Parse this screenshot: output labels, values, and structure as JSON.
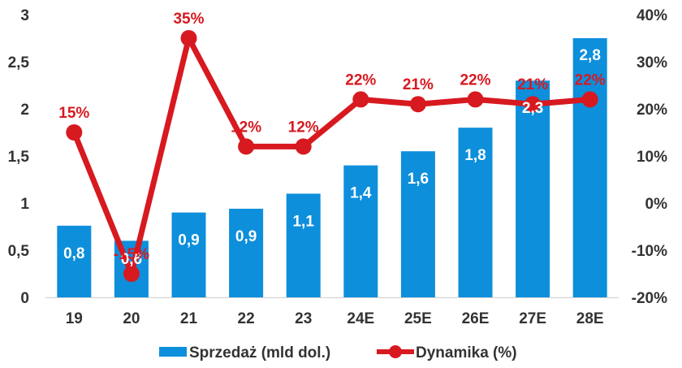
{
  "chart_data": {
    "type": "bar",
    "categories": [
      "19",
      "20",
      "21",
      "22",
      "23",
      "24E",
      "25E",
      "26E",
      "27E",
      "28E"
    ],
    "series": [
      {
        "name": "Sprzedaż (mld dol.)",
        "type": "bar",
        "axis": "left",
        "values": [
          0.76,
          0.6,
          0.9,
          0.94,
          1.1,
          1.4,
          1.55,
          1.8,
          2.3,
          2.75
        ],
        "labels": [
          "0,8",
          "0,6",
          "0,9",
          "0,9",
          "1,1",
          "1,4",
          "1,6",
          "1,8",
          "2,3",
          "2,8"
        ],
        "color": "#0d8fdc"
      },
      {
        "name": "Dynamika (%)",
        "type": "line",
        "axis": "right",
        "values": [
          15,
          -15,
          35,
          12,
          12,
          22,
          21,
          22,
          21,
          22
        ],
        "labels": [
          "15%",
          "-15%",
          "35%",
          "12%",
          "12%",
          "22%",
          "21%",
          "22%",
          "21%",
          "22%"
        ],
        "color": "#d71920"
      }
    ],
    "y_left": {
      "range": [
        0,
        3
      ],
      "ticks": [
        0,
        0.5,
        1,
        1.5,
        2,
        2.5,
        3
      ],
      "tick_labels": [
        "0",
        "0,5",
        "1",
        "1,5",
        "2",
        "2,5",
        "3"
      ]
    },
    "y_right": {
      "range": [
        -20,
        40
      ],
      "ticks": [
        -20,
        -10,
        0,
        10,
        20,
        30,
        40
      ],
      "tick_labels": [
        "-20%",
        "-10%",
        "0%",
        "10%",
        "20%",
        "30%",
        "40%"
      ]
    },
    "grid": false,
    "legend": {
      "position": "bottom"
    }
  }
}
